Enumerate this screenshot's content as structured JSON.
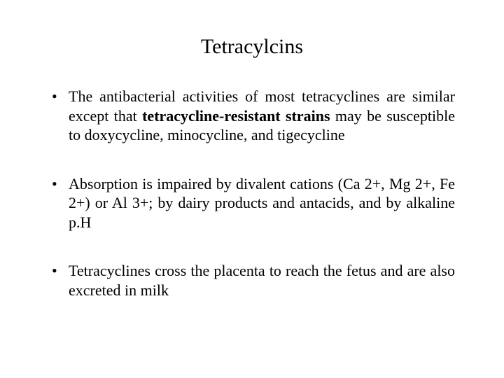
{
  "title": "Tetracylcins",
  "bullets": [
    {
      "pre": "The antibacterial activities of most tetracyclines are similar except that ",
      "bold": "tetracycline-resistant strains",
      "post": " may be susceptible to doxycycline, minocycline, and tigecycline"
    },
    {
      "pre": "Absorption is impaired by divalent cations (Ca 2+, Mg 2+, Fe 2+) or Al 3+; by dairy products and antacids, and by alkaline p.H",
      "bold": "",
      "post": ""
    },
    {
      "pre": "Tetracyclines cross the placenta to reach the fetus and are also excreted in milk",
      "bold": "",
      "post": ""
    }
  ],
  "colors": {
    "background": "#ffffff",
    "text": "#000000"
  },
  "typography": {
    "title_fontsize": 30,
    "body_fontsize": 22,
    "font_family": "Times New Roman"
  }
}
